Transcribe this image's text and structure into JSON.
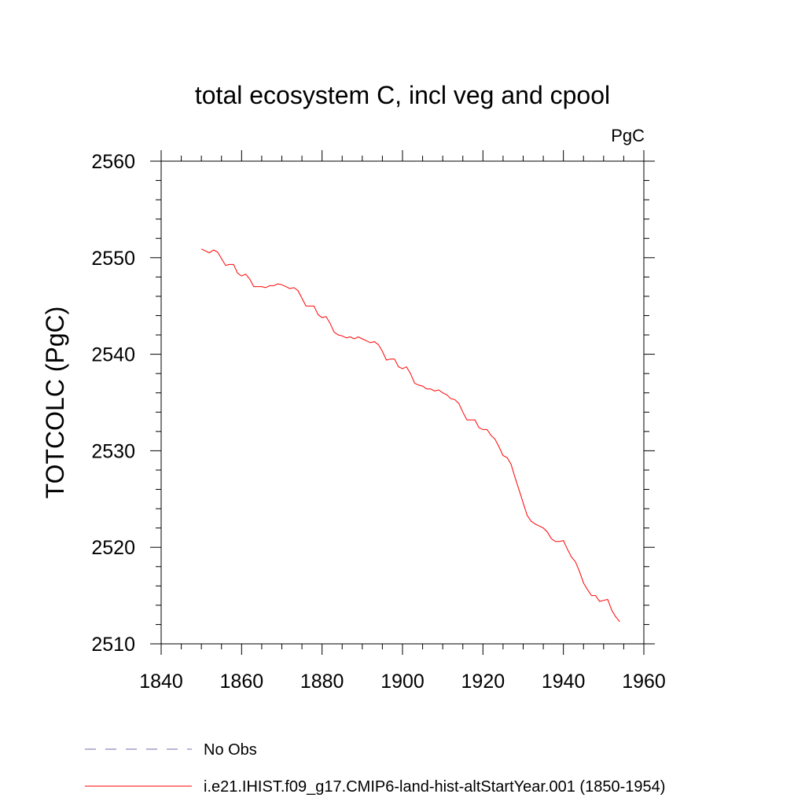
{
  "chart_data": {
    "type": "line",
    "title": "total ecosystem C, incl veg and cpool",
    "units": "PgC",
    "ylabel": "TOTCOLC  (PgC)",
    "xlabel": "",
    "xlim": [
      1840,
      1960
    ],
    "ylim": [
      2510,
      2560
    ],
    "x_ticks": [
      1840,
      1860,
      1880,
      1900,
      1920,
      1940,
      1960
    ],
    "y_ticks": [
      2510,
      2520,
      2530,
      2540,
      2550,
      2560
    ],
    "grid": false,
    "legend_position": "bottom-left",
    "series": [
      {
        "name": "No Obs",
        "color": "#6e6ea8",
        "dash": "dashed",
        "x": [],
        "y": []
      },
      {
        "name": "i.e21.IHIST.f09_g17.CMIP6-land-hist-altStartYear.001 (1850-1954)",
        "color": "#ff0000",
        "dash": "solid",
        "x": [
          1850,
          1851,
          1852,
          1853,
          1854,
          1855,
          1856,
          1857,
          1858,
          1859,
          1860,
          1861,
          1862,
          1863,
          1864,
          1865,
          1866,
          1867,
          1868,
          1869,
          1870,
          1871,
          1872,
          1873,
          1874,
          1875,
          1876,
          1877,
          1878,
          1879,
          1880,
          1881,
          1882,
          1883,
          1884,
          1885,
          1886,
          1887,
          1888,
          1889,
          1890,
          1891,
          1892,
          1893,
          1894,
          1895,
          1896,
          1897,
          1898,
          1899,
          1900,
          1901,
          1902,
          1903,
          1904,
          1905,
          1906,
          1907,
          1908,
          1909,
          1910,
          1911,
          1912,
          1913,
          1914,
          1915,
          1916,
          1917,
          1918,
          1919,
          1920,
          1921,
          1922,
          1923,
          1924,
          1925,
          1926,
          1927,
          1928,
          1929,
          1930,
          1931,
          1932,
          1933,
          1934,
          1935,
          1936,
          1937,
          1938,
          1939,
          1940,
          1941,
          1942,
          1943,
          1944,
          1945,
          1946,
          1947,
          1948,
          1949,
          1950,
          1951,
          1952,
          1953,
          1954
        ],
        "y": [
          2550.9,
          2550.7,
          2550.5,
          2550.8,
          2550.6,
          2549.9,
          2549.2,
          2549.3,
          2549.3,
          2548.4,
          2548.1,
          2548.3,
          2547.8,
          2547.0,
          2547.0,
          2547.0,
          2546.9,
          2547.1,
          2547.1,
          2547.3,
          2547.2,
          2547.0,
          2546.8,
          2546.9,
          2546.6,
          2545.8,
          2545.0,
          2545.0,
          2545.0,
          2544.1,
          2543.8,
          2543.9,
          2543.2,
          2542.3,
          2542.0,
          2541.9,
          2541.7,
          2541.8,
          2541.6,
          2541.8,
          2541.6,
          2541.4,
          2541.2,
          2541.3,
          2541.0,
          2540.3,
          2539.4,
          2539.5,
          2539.5,
          2538.7,
          2538.5,
          2538.7,
          2538.0,
          2537.0,
          2536.8,
          2536.7,
          2536.4,
          2536.4,
          2536.2,
          2536.3,
          2536.0,
          2535.8,
          2535.4,
          2535.3,
          2534.9,
          2534.0,
          2533.2,
          2533.2,
          2533.2,
          2532.4,
          2532.2,
          2532.2,
          2531.6,
          2531.2,
          2530.4,
          2529.5,
          2529.3,
          2528.6,
          2527.2,
          2525.9,
          2524.6,
          2523.3,
          2522.7,
          2522.4,
          2522.2,
          2522.0,
          2521.6,
          2520.9,
          2520.6,
          2520.6,
          2520.7,
          2519.8,
          2519.0,
          2518.5,
          2517.5,
          2516.3,
          2515.6,
          2515.0,
          2515.0,
          2514.4,
          2514.5,
          2514.6,
          2513.5,
          2512.8,
          2512.3
        ]
      }
    ]
  }
}
